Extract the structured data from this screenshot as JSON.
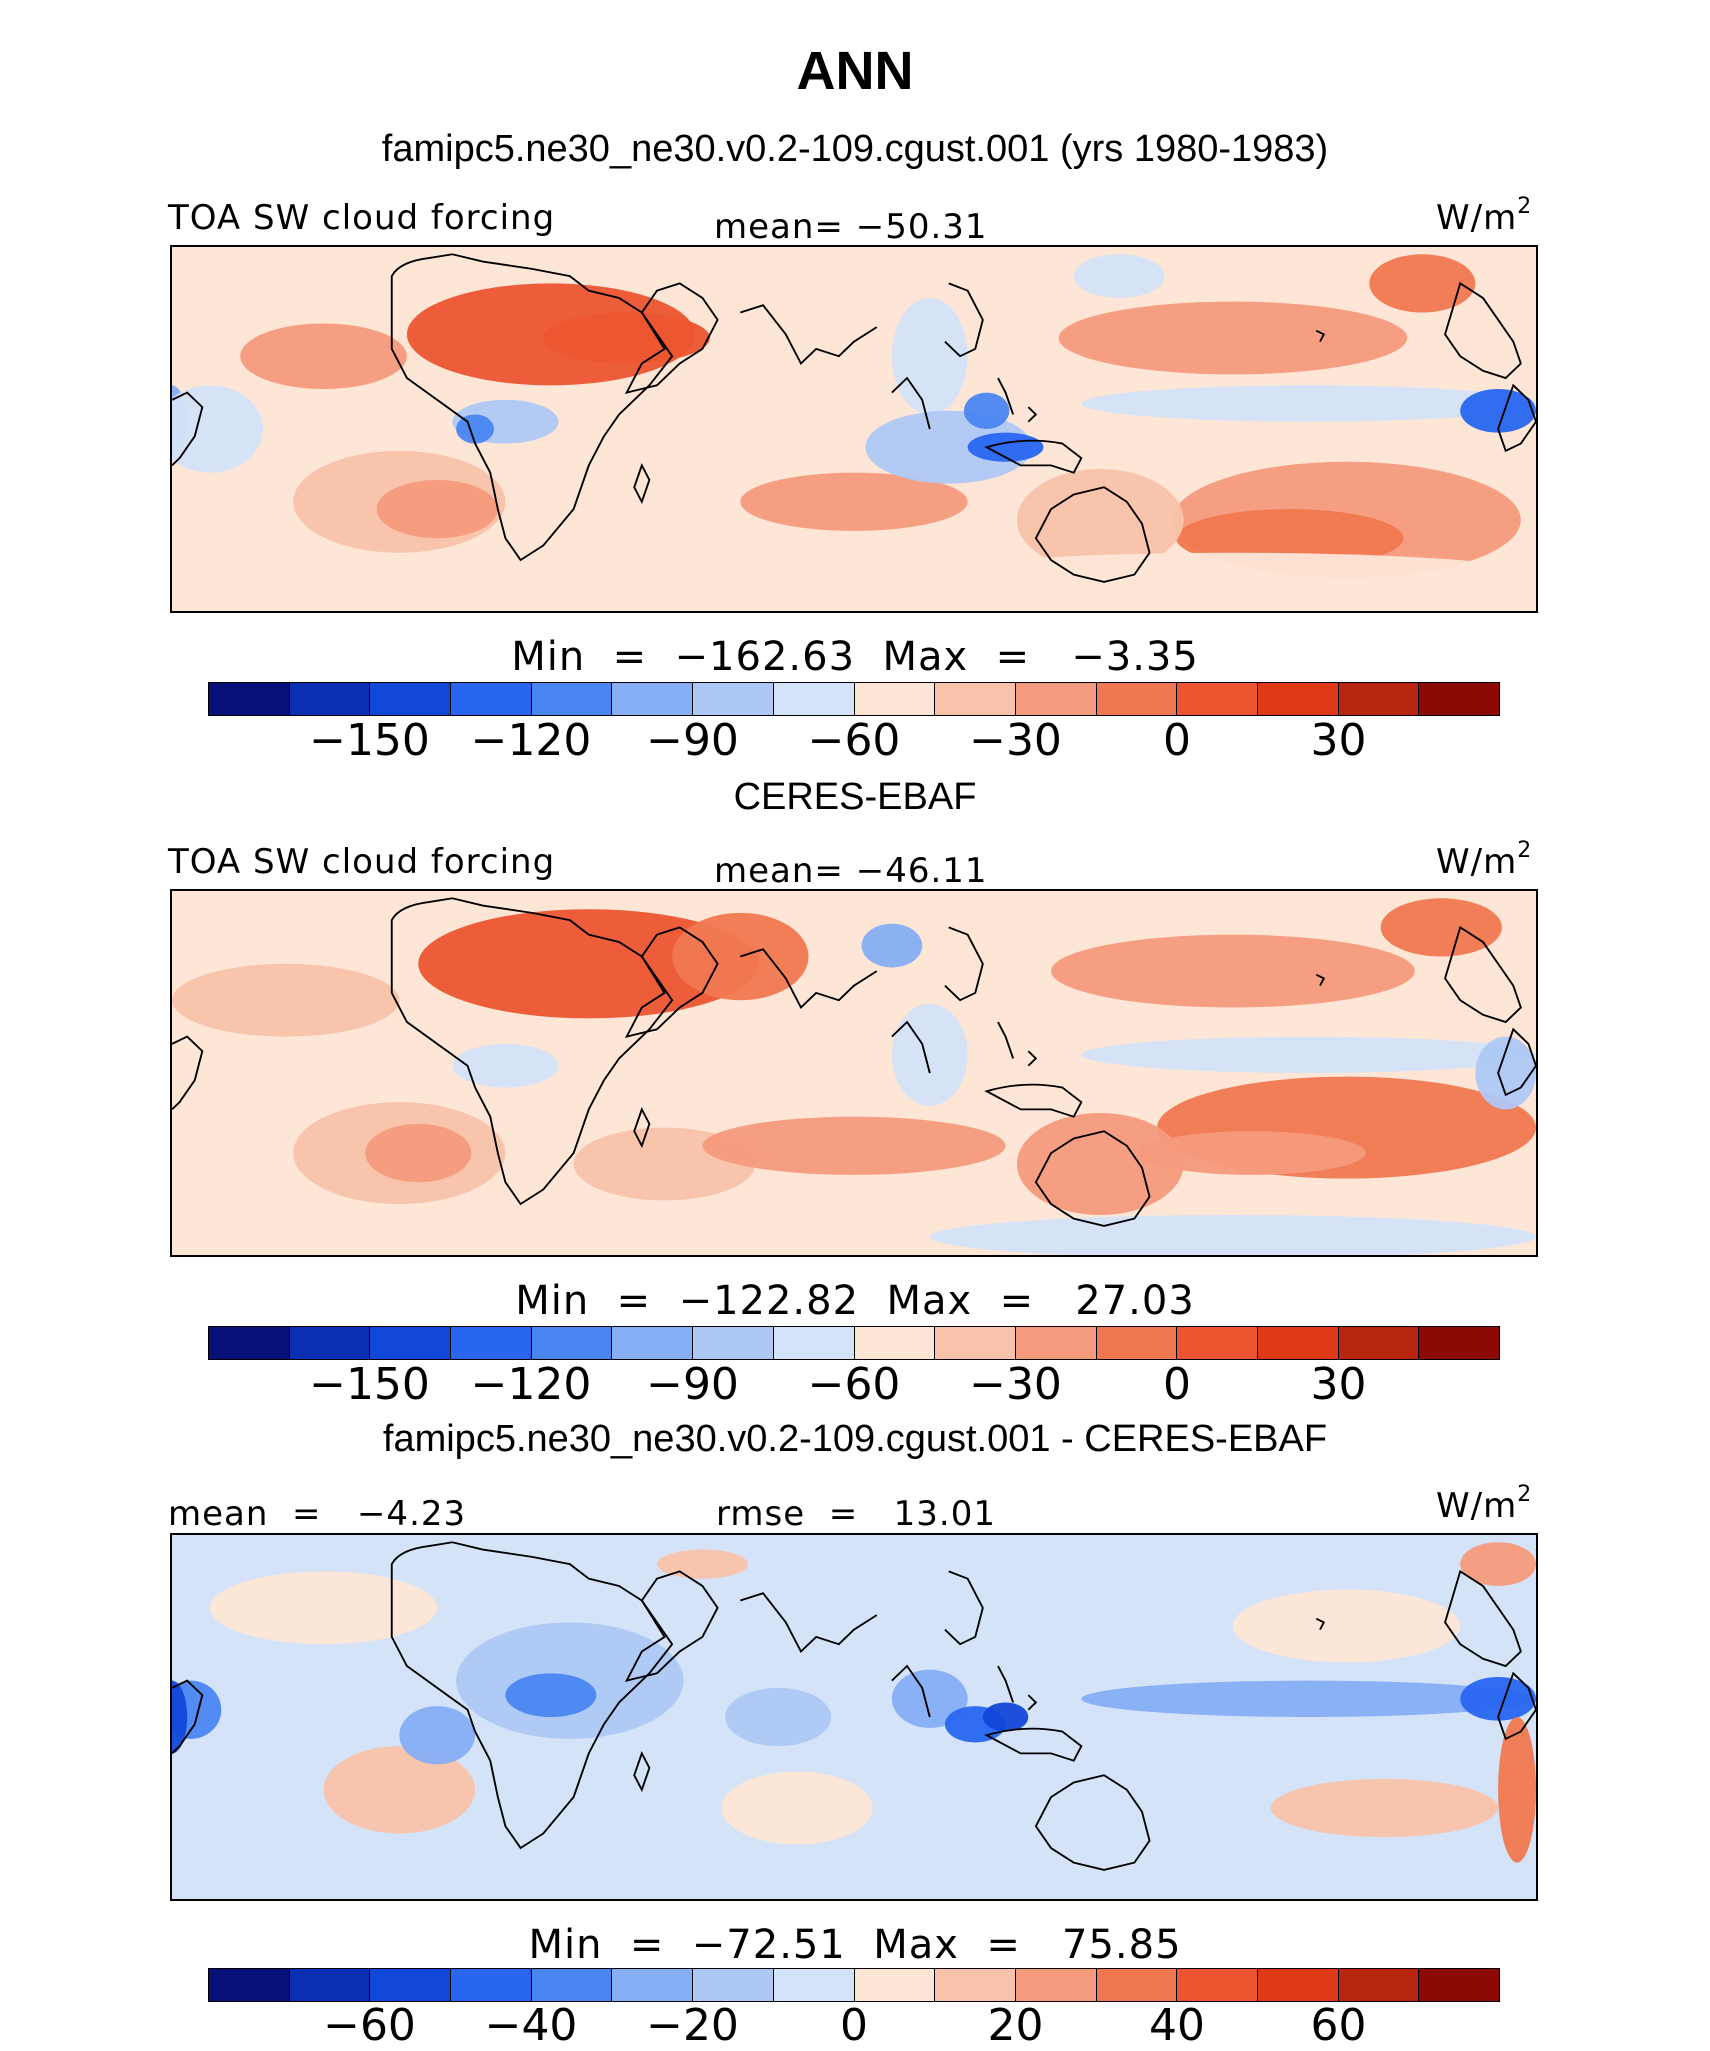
{
  "title": "ANN",
  "subtitle": "famipc5.ne30_ne30.v0.2-109.cgust.001 (yrs 1980-1983)",
  "panels": [
    {
      "left_label": "TOA SW cloud forcing",
      "center_label": "mean= −50.31",
      "unit": "W/m",
      "unit_sup": "2",
      "minmax": "Min  =  −162.63  Max  =   −3.35",
      "ticks": [
        "−150",
        "−120",
        "−90",
        "−60",
        "−30",
        "0",
        "30"
      ],
      "palette": "full"
    },
    {
      "heading": "CERES-EBAF",
      "left_label": "TOA SW cloud forcing",
      "center_label": "mean= −46.11",
      "unit": "W/m",
      "unit_sup": "2",
      "minmax": "Min  =  −122.82  Max  =   27.03",
      "ticks": [
        "−150",
        "−120",
        "−90",
        "−60",
        "−30",
        "0",
        "30"
      ],
      "palette": "full"
    },
    {
      "heading": "famipc5.ne30_ne30.v0.2-109.cgust.001 - CERES-EBAF",
      "left_label": "mean  =   −4.23",
      "center_label": "rmse  =   13.01",
      "unit": "W/m",
      "unit_sup": "2",
      "minmax": "Min  =  −72.51  Max  =   75.85",
      "ticks": [
        "−60",
        "−40",
        "−20",
        "0",
        "20",
        "40",
        "60"
      ],
      "palette": "diff"
    }
  ],
  "colorbar_colors": [
    "#08107a",
    "#0a2fb0",
    "#1248d8",
    "#2866f0",
    "#4a86f2",
    "#86aef4",
    "#aec8f6",
    "#d4e3f8",
    "#fde6d6",
    "#f9c2aa",
    "#f59a7c",
    "#f07850",
    "#ec5530",
    "#de3a18",
    "#b82510",
    "#8c0a06"
  ]
}
